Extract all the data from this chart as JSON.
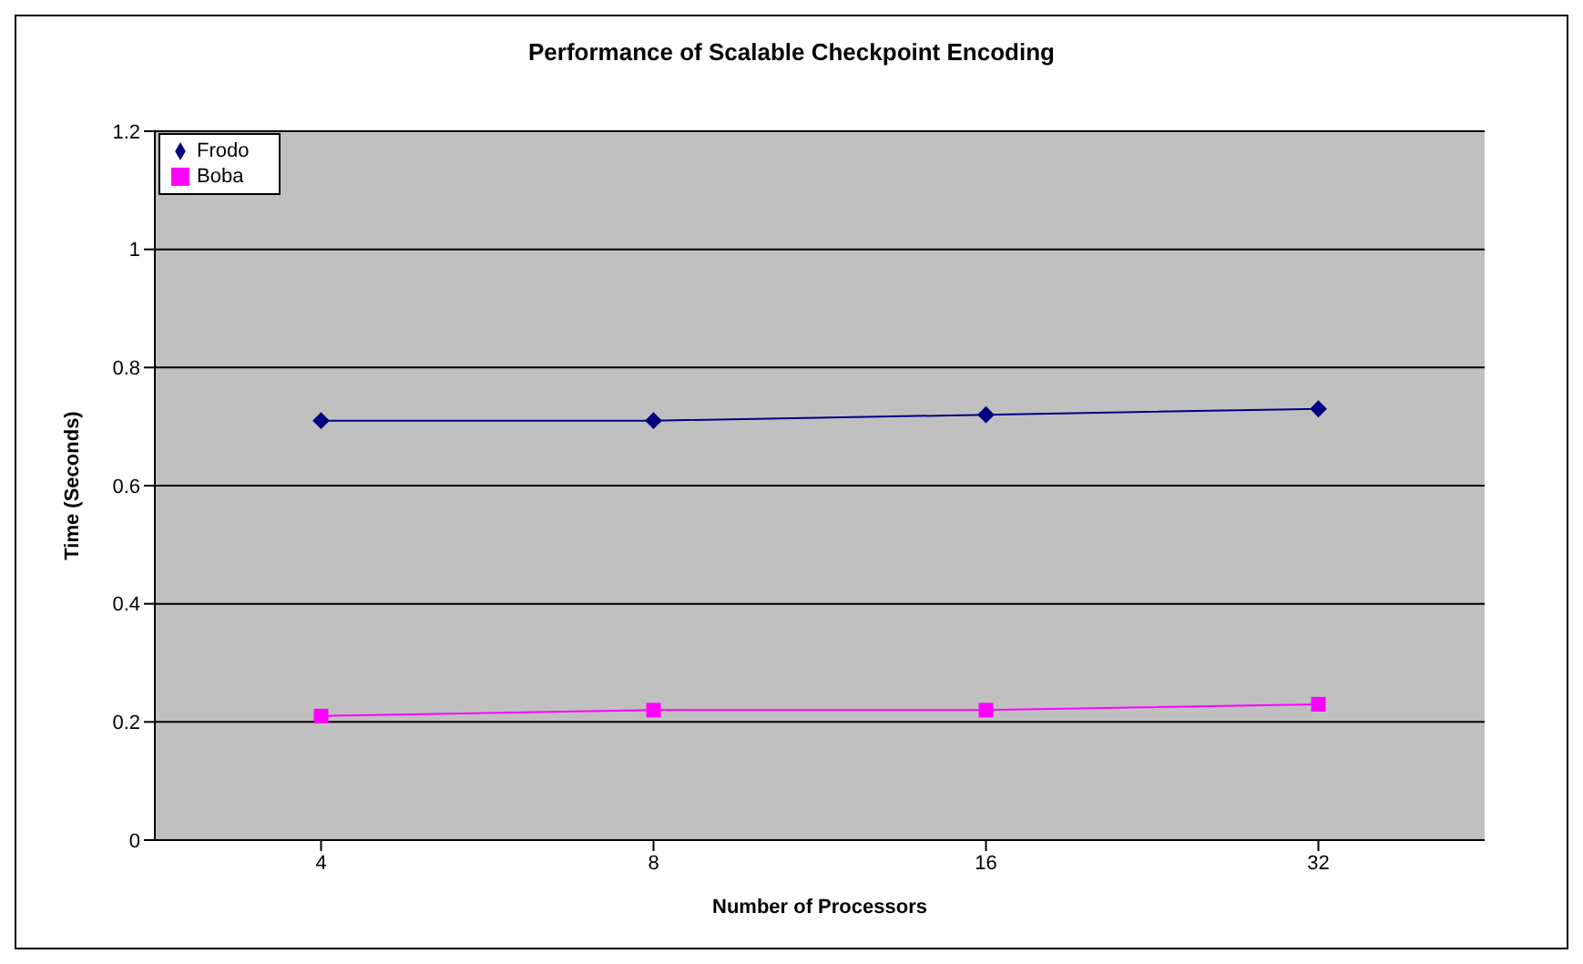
{
  "chart_data": {
    "type": "line",
    "title": "Performance of Scalable Checkpoint Encoding",
    "xlabel": "Number of Processors",
    "ylabel": "Time (Seconds)",
    "categories": [
      "4",
      "8",
      "16",
      "32"
    ],
    "series": [
      {
        "name": "Frodo",
        "color": "#000080",
        "marker": "diamond",
        "values": [
          0.71,
          0.71,
          0.72,
          0.73
        ]
      },
      {
        "name": "Boba",
        "color": "#ff00ff",
        "marker": "square",
        "values": [
          0.21,
          0.22,
          0.22,
          0.23
        ]
      }
    ],
    "ylim": [
      0,
      1.2
    ],
    "yticks": [
      0,
      0.2,
      0.4,
      0.6,
      0.8,
      1,
      1.2
    ],
    "grid": "y",
    "legend": "top left",
    "line_style": "solid"
  }
}
